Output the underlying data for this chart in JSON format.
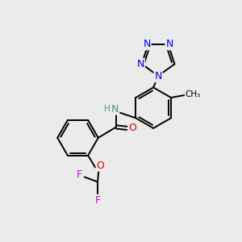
{
  "background_color": "#ebebeb",
  "bond_color": "#000000",
  "atom_colors": {
    "N": "#0000ee",
    "O": "#dd0000",
    "F": "#cc00cc",
    "NH": "#4a9090",
    "C": "#000000"
  },
  "figsize": [
    3.0,
    3.0
  ],
  "dpi": 100,
  "lw": 1.4,
  "fs": 8.5
}
